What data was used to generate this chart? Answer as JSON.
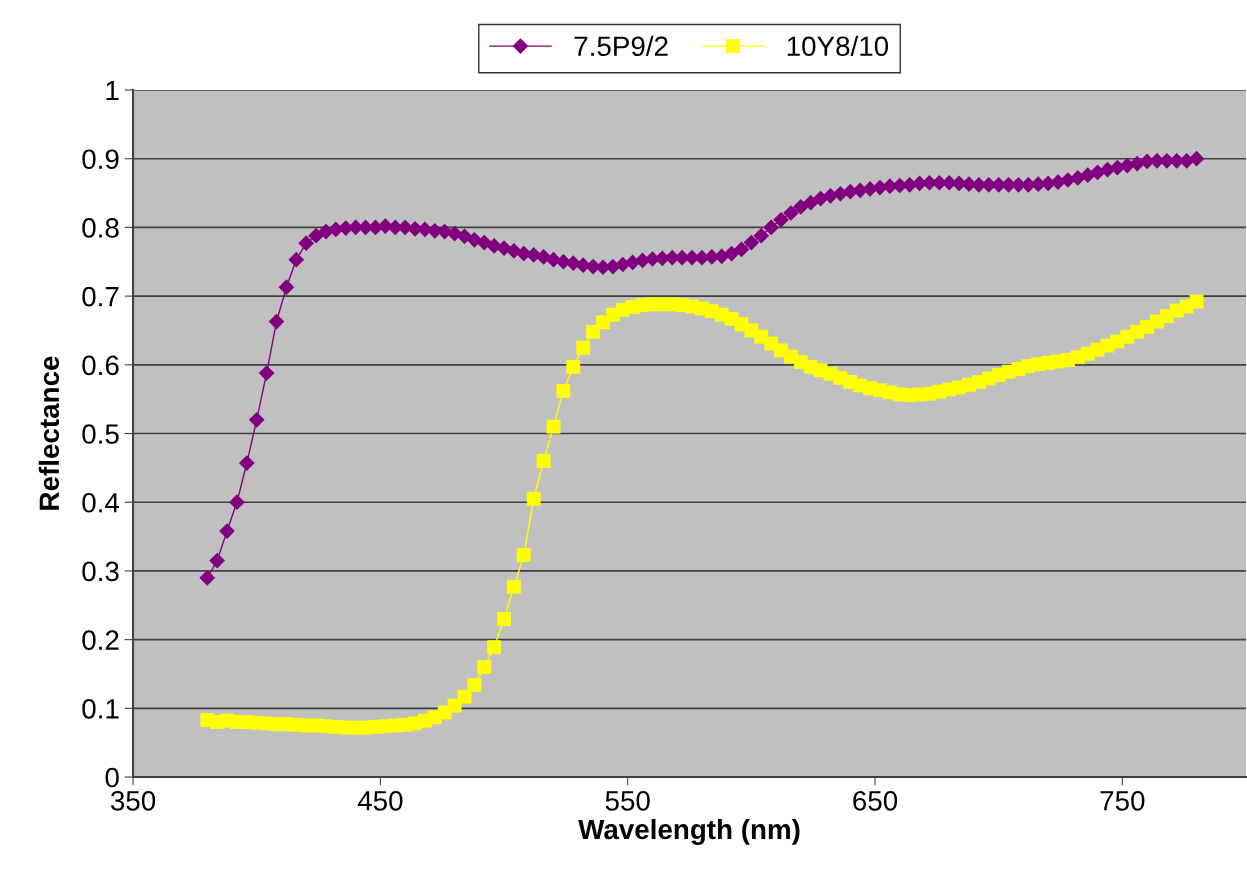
{
  "chart_data": {
    "type": "line",
    "xlabel": "Wavelength (nm)",
    "ylabel": "Reflectance",
    "x": [
      380,
      384,
      388,
      392,
      396,
      400,
      404,
      408,
      412,
      416,
      420,
      424,
      428,
      432,
      436,
      440,
      444,
      448,
      452,
      456,
      460,
      464,
      468,
      472,
      476,
      480,
      484,
      488,
      492,
      496,
      500,
      504,
      508,
      512,
      516,
      520,
      524,
      528,
      532,
      536,
      540,
      544,
      548,
      552,
      556,
      560,
      564,
      568,
      572,
      576,
      580,
      584,
      588,
      592,
      596,
      600,
      604,
      608,
      612,
      616,
      620,
      624,
      628,
      632,
      636,
      640,
      644,
      648,
      652,
      656,
      660,
      664,
      668,
      672,
      676,
      680,
      684,
      688,
      692,
      696,
      700,
      704,
      708,
      712,
      716,
      720,
      724,
      728,
      732,
      736,
      740,
      744,
      748,
      752,
      756,
      760,
      764,
      768,
      772,
      776,
      780
    ],
    "series": [
      {
        "name": "7.5P9/2",
        "color": "#800080",
        "marker": "diamond",
        "values": [
          0.29,
          0.315,
          0.358,
          0.4,
          0.457,
          0.52,
          0.588,
          0.663,
          0.713,
          0.753,
          0.777,
          0.788,
          0.794,
          0.797,
          0.799,
          0.8,
          0.8,
          0.8,
          0.802,
          0.8,
          0.8,
          0.798,
          0.797,
          0.795,
          0.794,
          0.791,
          0.787,
          0.782,
          0.778,
          0.773,
          0.77,
          0.766,
          0.762,
          0.76,
          0.757,
          0.753,
          0.75,
          0.748,
          0.745,
          0.743,
          0.742,
          0.743,
          0.746,
          0.749,
          0.752,
          0.754,
          0.755,
          0.756,
          0.756,
          0.756,
          0.756,
          0.757,
          0.758,
          0.762,
          0.768,
          0.778,
          0.788,
          0.8,
          0.811,
          0.821,
          0.83,
          0.836,
          0.842,
          0.846,
          0.849,
          0.852,
          0.854,
          0.856,
          0.858,
          0.86,
          0.861,
          0.862,
          0.864,
          0.865,
          0.865,
          0.865,
          0.864,
          0.863,
          0.862,
          0.862,
          0.862,
          0.862,
          0.862,
          0.862,
          0.863,
          0.864,
          0.866,
          0.869,
          0.872,
          0.876,
          0.88,
          0.884,
          0.887,
          0.89,
          0.893,
          0.896,
          0.897,
          0.897,
          0.897,
          0.897,
          0.9
        ]
      },
      {
        "name": "10Y8/10",
        "color": "#ffff00",
        "marker": "square",
        "values": [
          0.083,
          0.08,
          0.082,
          0.08,
          0.08,
          0.079,
          0.078,
          0.077,
          0.077,
          0.076,
          0.075,
          0.075,
          0.074,
          0.073,
          0.072,
          0.072,
          0.072,
          0.073,
          0.074,
          0.075,
          0.076,
          0.078,
          0.082,
          0.087,
          0.094,
          0.104,
          0.117,
          0.134,
          0.16,
          0.189,
          0.23,
          0.277,
          0.323,
          0.405,
          0.46,
          0.51,
          0.562,
          0.597,
          0.625,
          0.648,
          0.662,
          0.673,
          0.68,
          0.684,
          0.687,
          0.688,
          0.688,
          0.688,
          0.687,
          0.685,
          0.682,
          0.678,
          0.673,
          0.667,
          0.659,
          0.65,
          0.641,
          0.631,
          0.621,
          0.612,
          0.604,
          0.597,
          0.592,
          0.587,
          0.581,
          0.575,
          0.57,
          0.566,
          0.563,
          0.56,
          0.557,
          0.556,
          0.557,
          0.558,
          0.561,
          0.564,
          0.567,
          0.571,
          0.575,
          0.58,
          0.585,
          0.59,
          0.594,
          0.598,
          0.601,
          0.603,
          0.605,
          0.607,
          0.611,
          0.616,
          0.622,
          0.628,
          0.634,
          0.641,
          0.648,
          0.655,
          0.663,
          0.671,
          0.679,
          0.685,
          0.692
        ]
      }
    ],
    "xlim": [
      350,
      800
    ],
    "xticks": [
      350,
      450,
      550,
      650,
      750
    ],
    "ylim": [
      0,
      1
    ],
    "yticks": [
      0,
      0.1,
      0.2,
      0.3,
      0.4,
      0.5,
      0.6,
      0.7,
      0.8,
      0.9,
      1
    ],
    "grid": "y",
    "legend": "top",
    "line_style": "solid"
  }
}
